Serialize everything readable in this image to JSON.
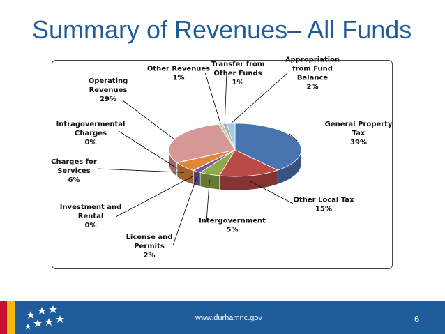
{
  "slide": {
    "title": "Summary of Revenues– All Funds",
    "footer_url": "www.durhamnc.gov",
    "page_number": "6"
  },
  "colors": {
    "title": "#1f5c99",
    "footer": "#1f5c99",
    "stripe_red": "#c8102e",
    "stripe_yellow": "#f2b80f"
  },
  "chart_data": {
    "type": "pie",
    "title": "",
    "slices": [
      {
        "label": "General Property Tax",
        "display": [
          "General Property",
          "Tax",
          "39%"
        ],
        "value": 39,
        "color": "#4a74b0"
      },
      {
        "label": "Other Local Tax",
        "display": [
          "Other Local Tax",
          "15%"
        ],
        "value": 15,
        "color": "#b84a47"
      },
      {
        "label": "Intergovernment",
        "display": [
          "Intergovernment",
          "5%"
        ],
        "value": 5,
        "color": "#8eaa4b"
      },
      {
        "label": "License and Permits",
        "display": [
          "License and",
          "Permits",
          "2%"
        ],
        "value": 2,
        "color": "#6e57a0"
      },
      {
        "label": "Investment and Rental",
        "display": [
          "Investment and",
          "Rental",
          "0%"
        ],
        "value": 0,
        "color": "#3aa2c0"
      },
      {
        "label": "Charges for Services",
        "display": [
          "Charges for",
          "Services",
          "6%"
        ],
        "value": 6,
        "color": "#e0873a"
      },
      {
        "label": "Intragovermental Charges",
        "display": [
          "Intragovermental",
          "Charges",
          "0%"
        ],
        "value": 0,
        "color": "#8aa6d0"
      },
      {
        "label": "Operating Revenues",
        "display": [
          "Operating",
          "Revenues",
          "29%"
        ],
        "value": 29,
        "color": "#d69896"
      },
      {
        "label": "Other Revenues",
        "display": [
          "Other Revenues",
          "1%"
        ],
        "value": 1,
        "color": "#c3d39b"
      },
      {
        "label": "Transfer from Other Funds",
        "display": [
          "Transfer from",
          "Other Funds",
          "1%"
        ],
        "value": 1,
        "color": "#b3a6cc"
      },
      {
        "label": "Appropriation from Fund Balance",
        "display": [
          "Appropriation",
          "from Fund",
          "Balance",
          "2%"
        ],
        "value": 2,
        "color": "#9ecfe0"
      }
    ]
  }
}
